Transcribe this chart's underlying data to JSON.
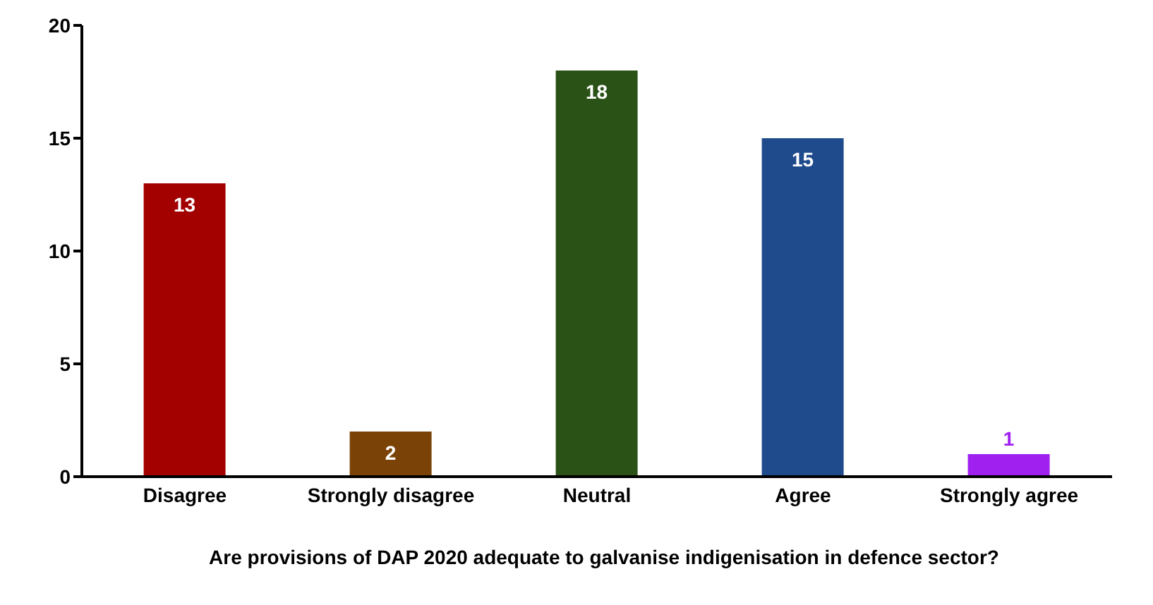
{
  "chart_data": {
    "type": "bar",
    "xlabel": "Are provisions of DAP 2020 adequate to  galvanise indigenisation in defence sector?",
    "categories": [
      "Disagree",
      "Strongly disagree",
      "Neutral",
      "Agree",
      "Strongly agree"
    ],
    "values": [
      13,
      2,
      18,
      15,
      1
    ],
    "colors": [
      "#a30000",
      "#7a4206",
      "#2b5216",
      "#1f4a8c",
      "#a020f0"
    ],
    "ylim": [
      0,
      20
    ],
    "yticks": [
      0,
      5,
      10,
      15,
      20
    ],
    "data_labels": true,
    "grid": false,
    "legend": false
  }
}
